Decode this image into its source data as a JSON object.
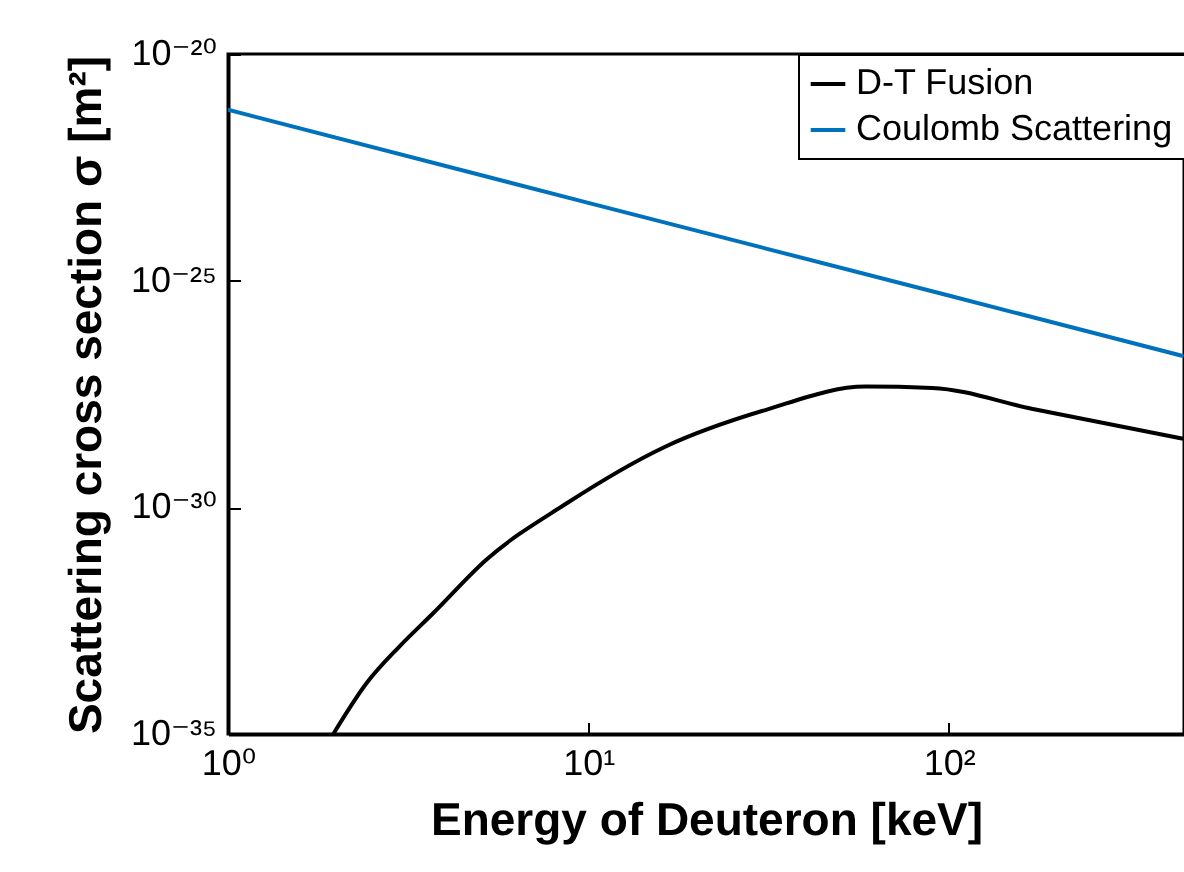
{
  "chart_data": {
    "type": "line",
    "xlabel": "Energy of Deuteron [keV]",
    "ylabel": "Scattering cross section σ [m²]",
    "log": "xy",
    "xlim": [
      1,
      450
    ],
    "ylim": [
      1e-35,
      1e-20
    ],
    "xticks": [
      {
        "value": 1,
        "label": "10⁰"
      },
      {
        "value": 10,
        "label": "10¹"
      },
      {
        "value": 100,
        "label": "10²"
      }
    ],
    "yticks": [
      {
        "value": 1e-35,
        "label": "10⁻³⁵"
      },
      {
        "value": 1e-30,
        "label": "10⁻³⁰"
      },
      {
        "value": 1e-25,
        "label": "10⁻²⁵"
      },
      {
        "value": 1e-20,
        "label": "10⁻²⁰"
      }
    ],
    "legend": "top right",
    "grid": false,
    "series": [
      {
        "name": "D-T Fusion",
        "color": "#000000",
        "x": [
          1.96,
          2.42,
          2.99,
          3.71,
          5.2,
          8.67,
          16.4,
          31,
          58.8,
          90,
          170,
          444
        ],
        "values": [
          1e-35,
          1.3e-34,
          8.5e-34,
          4.6e-33,
          6.9e-32,
          1.2e-30,
          2.2e-29,
          1.4e-28,
          4.6e-28,
          4.3e-28,
          1.5e-28,
          3.3e-29
        ]
      },
      {
        "name": "Coulomb Scattering",
        "color": "#0072bd",
        "x": [
          1,
          10,
          100,
          444
        ],
        "values": [
          5.9e-22,
          5.2e-24,
          4.7e-26,
          2.2e-27
        ]
      }
    ]
  }
}
